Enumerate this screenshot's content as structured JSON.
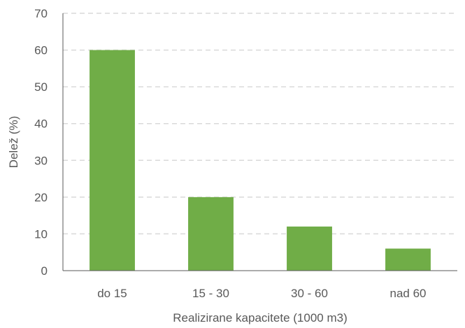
{
  "chart_data": {
    "type": "bar",
    "categories": [
      "do 15",
      "15 - 30",
      "30 - 60",
      "nad 60"
    ],
    "values": [
      60,
      20,
      12,
      6
    ],
    "xlabel": "Realizirane kapacitete (1000 m3)",
    "ylabel": "Delež (%)",
    "ylim": [
      0,
      70
    ],
    "yticks": [
      "0",
      "10",
      "20",
      "30",
      "40",
      "50",
      "60",
      "70"
    ],
    "grid": "horizontal-dashed",
    "legend": "none",
    "bar_color": "#70ad47",
    "grid_color": "#d9d9d9",
    "axis_color": "#595959"
  }
}
